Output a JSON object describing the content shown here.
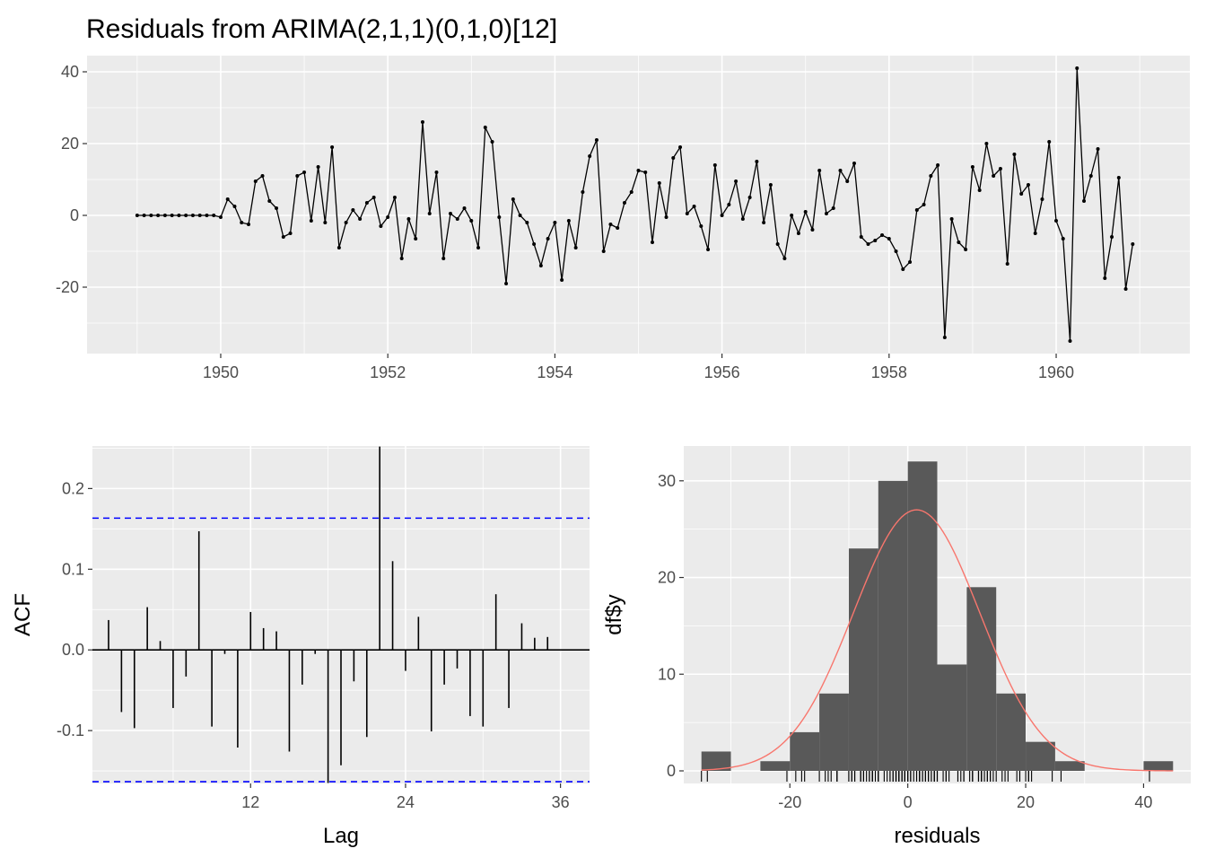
{
  "chart_data": [
    {
      "type": "line",
      "title": "Residuals from ARIMA(2,1,1)(0,1,0)[12]",
      "xlabel": "",
      "ylabel": "",
      "xlim": [
        1948.4,
        1961.6
      ],
      "ylim": [
        -38.5,
        44.5
      ],
      "x_ticks": [
        1950,
        1952,
        1954,
        1956,
        1958,
        1960
      ],
      "x_tick_labels": [
        "1950",
        "1952",
        "1954",
        "1956",
        "1958",
        "1960"
      ],
      "y_ticks": [
        -20,
        0,
        20,
        40
      ],
      "y_tick_labels": [
        "-20",
        "0",
        "20",
        "40"
      ],
      "grid": true,
      "x_start": 1949.0,
      "x_step": 0.08333,
      "values": [
        0,
        0,
        0,
        0,
        0,
        0,
        0,
        0,
        0,
        0,
        0,
        0,
        -0.5,
        4.5,
        2.5,
        -2,
        -2.5,
        9.5,
        11,
        4,
        2,
        -6,
        -5,
        11,
        12,
        -1.5,
        13.5,
        -2,
        19,
        -9,
        -2,
        1.5,
        -1,
        3.5,
        5,
        -3,
        -0.5,
        5,
        -12,
        -1,
        -6.5,
        26,
        0.5,
        12,
        -12,
        0.5,
        -1,
        2,
        -1.5,
        -9,
        24.5,
        20.5,
        -0.5,
        -19,
        4.5,
        0,
        -2,
        -8,
        -14,
        -6.5,
        -2,
        -18,
        -1.5,
        -9,
        6.5,
        16.5,
        21,
        -10,
        -2.5,
        -3.5,
        3.5,
        6.5,
        12.5,
        12,
        -7.5,
        9,
        -0.5,
        16,
        19,
        0.5,
        2.5,
        -3,
        -9.5,
        14,
        0,
        3,
        9.5,
        -1,
        5,
        15,
        -2,
        8.5,
        -8,
        -12,
        0,
        -5,
        1,
        -4,
        12.5,
        0.5,
        2,
        12.5,
        9.5,
        14.5,
        -6,
        -8,
        -7,
        -5.5,
        -6.5,
        -10,
        -15,
        -13,
        1.5,
        3,
        11,
        14,
        -34,
        -1,
        -7.5,
        -9.5,
        13.5,
        7,
        20,
        11,
        13,
        -13.5,
        17,
        6,
        8.5,
        -5,
        4.5,
        20.5,
        -1.5,
        -6.5,
        -35,
        41,
        4,
        11,
        18.5,
        -17.5,
        -6,
        10.5,
        -20.5,
        -8
      ]
    },
    {
      "type": "bar",
      "xlabel": "Lag",
      "ylabel": "ACF",
      "xlim": [
        -0.25,
        38.25
      ],
      "ylim": [
        -0.1655,
        0.2527
      ],
      "x_ticks": [
        12,
        24,
        36
      ],
      "x_tick_labels": [
        "12",
        "24",
        "36"
      ],
      "y_ticks": [
        -0.1,
        0.0,
        0.1,
        0.2
      ],
      "y_tick_labels": [
        "-0.1",
        "0.0",
        "0.1",
        "0.2"
      ],
      "conf_limits": [
        0.1633,
        -0.1633
      ],
      "grid": true,
      "lags": [
        1,
        2,
        3,
        4,
        5,
        6,
        7,
        8,
        9,
        10,
        11,
        12,
        13,
        14,
        15,
        16,
        17,
        18,
        19,
        20,
        21,
        22,
        23,
        24,
        25,
        26,
        27,
        28,
        29,
        30,
        31,
        32,
        33,
        34,
        35,
        36
      ],
      "values": [
        0.037,
        -0.077,
        -0.097,
        0.053,
        0.011,
        -0.072,
        -0.033,
        0.147,
        -0.095,
        -0.005,
        -0.121,
        0.047,
        0.027,
        0.023,
        -0.126,
        -0.043,
        -0.005,
        -0.165,
        -0.143,
        -0.039,
        -0.108,
        0.252,
        0.11,
        -0.026,
        0.041,
        -0.101,
        -0.043,
        -0.023,
        -0.082,
        -0.095,
        0.069,
        -0.072,
        0.033,
        0.015,
        0.016,
        0.0
      ]
    },
    {
      "type": "bar",
      "subtype": "histogram",
      "xlabel": "residuals",
      "ylabel": "df$y",
      "xlim": [
        -38,
        48
      ],
      "ylim": [
        -1.3,
        33.6
      ],
      "x_ticks": [
        -20,
        0,
        20,
        40
      ],
      "x_tick_labels": [
        "-20",
        "0",
        "20",
        "40"
      ],
      "y_ticks": [
        0,
        10,
        20,
        30
      ],
      "y_tick_labels": [
        "0",
        "10",
        "20",
        "30"
      ],
      "grid": true,
      "bin_width": 5,
      "bins": [
        {
          "x0": -35,
          "x1": -30,
          "count": 2
        },
        {
          "x0": -30,
          "x1": -25,
          "count": 0
        },
        {
          "x0": -25,
          "x1": -20,
          "count": 1
        },
        {
          "x0": -20,
          "x1": -15,
          "count": 4
        },
        {
          "x0": -15,
          "x1": -10,
          "count": 8
        },
        {
          "x0": -10,
          "x1": -5,
          "count": 23
        },
        {
          "x0": -5,
          "x1": 0,
          "count": 30
        },
        {
          "x0": 0,
          "x1": 5,
          "count": 32
        },
        {
          "x0": 5,
          "x1": 10,
          "count": 11
        },
        {
          "x0": 10,
          "x1": 15,
          "count": 19
        },
        {
          "x0": 15,
          "x1": 20,
          "count": 8
        },
        {
          "x0": 20,
          "x1": 25,
          "count": 3
        },
        {
          "x0": 25,
          "x1": 30,
          "count": 1
        },
        {
          "x0": 30,
          "x1": 35,
          "count": 0
        },
        {
          "x0": 35,
          "x1": 40,
          "count": 0
        },
        {
          "x0": 40,
          "x1": 45,
          "count": 1
        }
      ],
      "normal_curve": {
        "mean": 1.5,
        "sd": 10.7,
        "peak": 27,
        "color": "#f8766d"
      },
      "rug": true
    }
  ],
  "colors": {
    "panel": "#ebebeb",
    "grid_major": "#ffffff",
    "bar": "#595959",
    "conf_line": "#0000ff",
    "series": "#000000"
  }
}
